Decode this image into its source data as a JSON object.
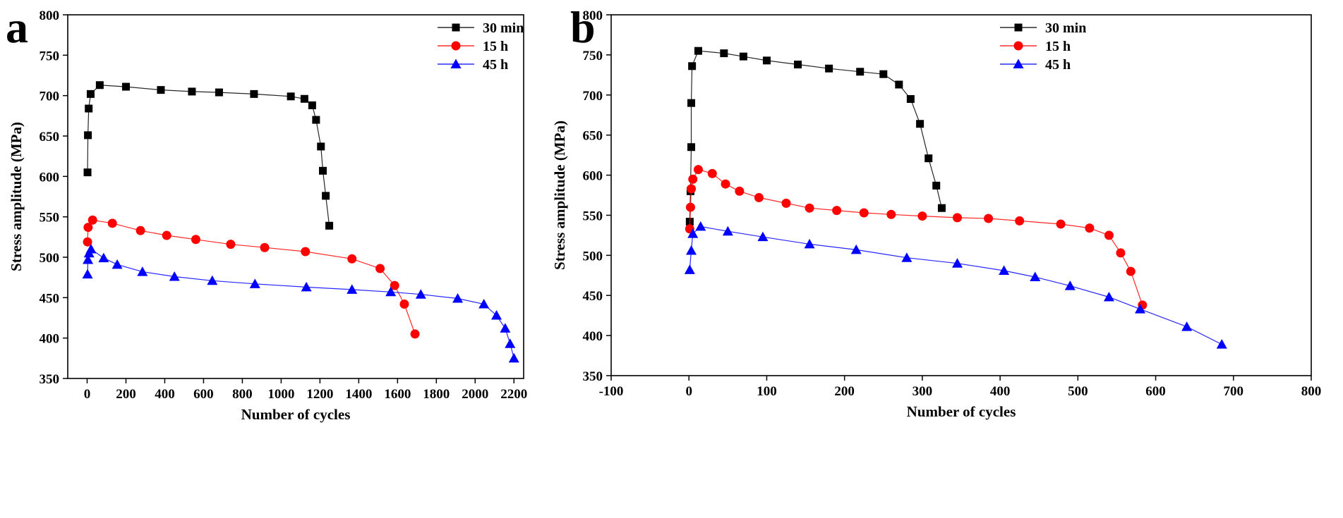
{
  "chart_data": [
    {
      "panel_label": "a",
      "type": "line",
      "xlabel": "Number of cycles",
      "ylabel": "Stress amplitude (MPa)",
      "xlim": [
        -100,
        2250
      ],
      "ylim": [
        350,
        800
      ],
      "xticks": [
        0,
        200,
        400,
        600,
        800,
        1000,
        1200,
        1400,
        1600,
        1800,
        2000,
        2200
      ],
      "yticks": [
        350,
        400,
        450,
        500,
        550,
        600,
        650,
        700,
        750,
        800
      ],
      "legend_position": "top-right",
      "series": [
        {
          "name": "30 min",
          "color": "#000000",
          "marker": "square",
          "points": [
            [
              2,
              605
            ],
            [
              4,
              651
            ],
            [
              8,
              684
            ],
            [
              18,
              702
            ],
            [
              65,
              713
            ],
            [
              200,
              711
            ],
            [
              380,
              707
            ],
            [
              540,
              705
            ],
            [
              680,
              704
            ],
            [
              860,
              702
            ],
            [
              1050,
              699
            ],
            [
              1120,
              696
            ],
            [
              1160,
              688
            ],
            [
              1180,
              670
            ],
            [
              1205,
              637
            ],
            [
              1215,
              607
            ],
            [
              1230,
              576
            ],
            [
              1248,
              539
            ]
          ]
        },
        {
          "name": "15 h",
          "color": "#ff0000",
          "marker": "circle",
          "points": [
            [
              2,
              519
            ],
            [
              5,
              537
            ],
            [
              28,
              546
            ],
            [
              130,
              542
            ],
            [
              275,
              533
            ],
            [
              410,
              527
            ],
            [
              560,
              522
            ],
            [
              740,
              516
            ],
            [
              915,
              512
            ],
            [
              1125,
              507
            ],
            [
              1365,
              498
            ],
            [
              1510,
              486
            ],
            [
              1585,
              465
            ],
            [
              1635,
              442
            ],
            [
              1690,
              405
            ]
          ]
        },
        {
          "name": "45 h",
          "color": "#0000ff",
          "marker": "triangle",
          "points": [
            [
              2,
              479
            ],
            [
              4,
              497
            ],
            [
              10,
              505
            ],
            [
              20,
              510
            ],
            [
              85,
              499
            ],
            [
              155,
              491
            ],
            [
              285,
              482
            ],
            [
              450,
              476
            ],
            [
              645,
              471
            ],
            [
              865,
              467
            ],
            [
              1130,
              463
            ],
            [
              1365,
              460
            ],
            [
              1565,
              457
            ],
            [
              1720,
              454
            ],
            [
              1910,
              449
            ],
            [
              2045,
              442
            ],
            [
              2110,
              428
            ],
            [
              2155,
              412
            ],
            [
              2180,
              393
            ],
            [
              2200,
              375
            ]
          ]
        }
      ]
    },
    {
      "panel_label": "b",
      "type": "line",
      "xlabel": "Number of cycles",
      "ylabel": "Stress amplitude (MPa)",
      "xlim": [
        -100,
        800
      ],
      "ylim": [
        350,
        800
      ],
      "xticks": [
        -100,
        0,
        100,
        200,
        300,
        400,
        500,
        600,
        700,
        800
      ],
      "yticks": [
        350,
        400,
        450,
        500,
        550,
        600,
        650,
        700,
        750,
        800
      ],
      "legend_position": "top-right",
      "series": [
        {
          "name": "30 min",
          "color": "#000000",
          "marker": "square",
          "points": [
            [
              1,
              542
            ],
            [
              2,
              580
            ],
            [
              3,
              635
            ],
            [
              3,
              690
            ],
            [
              4,
              736
            ],
            [
              12,
              755
            ],
            [
              45,
              752
            ],
            [
              70,
              748
            ],
            [
              100,
              743
            ],
            [
              140,
              738
            ],
            [
              180,
              733
            ],
            [
              220,
              729
            ],
            [
              250,
              726
            ],
            [
              270,
              713
            ],
            [
              285,
              695
            ],
            [
              297,
              664
            ],
            [
              308,
              621
            ],
            [
              318,
              587
            ],
            [
              325,
              559
            ]
          ]
        },
        {
          "name": "15 h",
          "color": "#ff0000",
          "marker": "circle",
          "points": [
            [
              1,
              533
            ],
            [
              2,
              560
            ],
            [
              3,
              583
            ],
            [
              5,
              595
            ],
            [
              12,
              607
            ],
            [
              30,
              602
            ],
            [
              47,
              589
            ],
            [
              65,
              580
            ],
            [
              90,
              572
            ],
            [
              125,
              565
            ],
            [
              155,
              559
            ],
            [
              190,
              556
            ],
            [
              225,
              553
            ],
            [
              260,
              551
            ],
            [
              300,
              549
            ],
            [
              345,
              547
            ],
            [
              385,
              546
            ],
            [
              425,
              543
            ],
            [
              478,
              539
            ],
            [
              515,
              534
            ],
            [
              540,
              525
            ],
            [
              555,
              503
            ],
            [
              568,
              480
            ],
            [
              583,
              438
            ]
          ]
        },
        {
          "name": "45 h",
          "color": "#0000ff",
          "marker": "triangle",
          "points": [
            [
              1,
              482
            ],
            [
              3,
              506
            ],
            [
              5,
              527
            ],
            [
              15,
              536
            ],
            [
              50,
              530
            ],
            [
              95,
              523
            ],
            [
              155,
              514
            ],
            [
              215,
              507
            ],
            [
              280,
              497
            ],
            [
              345,
              490
            ],
            [
              405,
              481
            ],
            [
              445,
              473
            ],
            [
              490,
              462
            ],
            [
              540,
              448
            ],
            [
              580,
              433
            ],
            [
              640,
              411
            ],
            [
              685,
              389
            ]
          ]
        }
      ]
    }
  ]
}
